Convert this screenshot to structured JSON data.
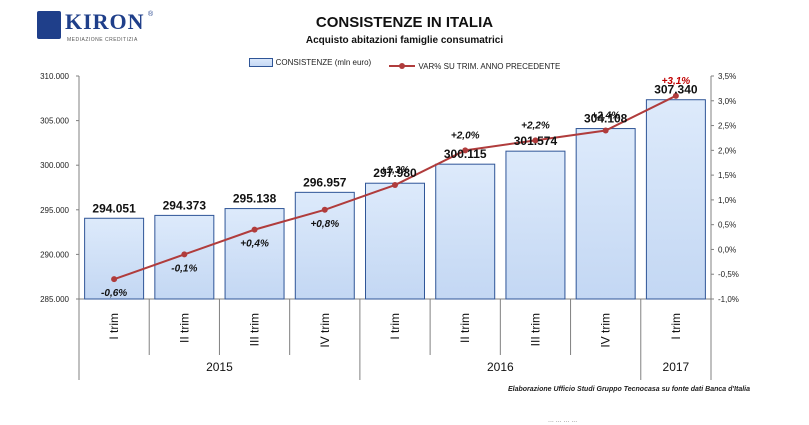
{
  "header": {
    "brand": "KIRON",
    "brand_registered": "®",
    "brand_sub": "MEDIAZIONE CREDITIZIA",
    "title": "CONSISTENZE IN ITALIA",
    "subtitle": "Acquisto abitazioni famiglie consumatrici"
  },
  "legend": {
    "bar_label": "CONSISTENZE (mln euro)",
    "line_label": "VAR% SU TRIM. ANNO PRECEDENTE"
  },
  "footer": {
    "source": "Elaborazione Ufficio Studi Gruppo Tecnocasa su fonte dati Banca d'Italia",
    "faint_text": "...  ...  ...  ..."
  },
  "colors": {
    "bar_fill_top": "#ddeafb",
    "bar_fill_bottom": "#c3d7f3",
    "bar_border": "#2f5597",
    "line": "#b03c3c",
    "last_label": "#c00000"
  },
  "chart_data": {
    "type": "bar",
    "categories": [
      "I trim",
      "II trim",
      "III trim",
      "IV trim",
      "I trim",
      "II trim",
      "III trim",
      "IV trim",
      "I trim"
    ],
    "years": [
      {
        "label": "2015",
        "count": 4
      },
      {
        "label": "2016",
        "count": 4
      },
      {
        "label": "2017",
        "count": 1
      }
    ],
    "series": [
      {
        "name": "CONSISTENZE (mln euro)",
        "type": "bar",
        "axis": "left",
        "values": [
          294051,
          294373,
          295138,
          296957,
          297980,
          300115,
          301574,
          304108,
          307340
        ],
        "labels": [
          "294.051",
          "294.373",
          "295.138",
          "296.957",
          "297.980",
          "300.115",
          "301.574",
          "304.108",
          "307.340"
        ]
      },
      {
        "name": "VAR% SU TRIM. ANNO PRECEDENTE",
        "type": "line",
        "axis": "right",
        "values": [
          -0.6,
          -0.1,
          0.4,
          0.8,
          1.3,
          2.0,
          2.2,
          2.4,
          3.1
        ],
        "labels": [
          "-0,6%",
          "-0,1%",
          "+0,4%",
          "+0,8%",
          "+1,3%",
          "+2,0%",
          "+2,2%",
          "+2,4%",
          "+3,1%"
        ]
      }
    ],
    "y_left": {
      "min": 285000,
      "max": 310000,
      "step": 5000,
      "ticks": [
        "285.000",
        "290.000",
        "295.000",
        "300.000",
        "305.000",
        "310.000"
      ]
    },
    "y_right": {
      "min": -1.0,
      "max": 3.5,
      "step": 0.5,
      "ticks": [
        "-1,0%",
        "-0,5%",
        "0,0%",
        "0,5%",
        "1,0%",
        "1,5%",
        "2,0%",
        "2,5%",
        "3,0%",
        "3,5%"
      ]
    },
    "title": "CONSISTENZE IN ITALIA",
    "subtitle": "Acquisto abitazioni famiglie consumatrici",
    "grid": false,
    "legend_position": "top"
  }
}
